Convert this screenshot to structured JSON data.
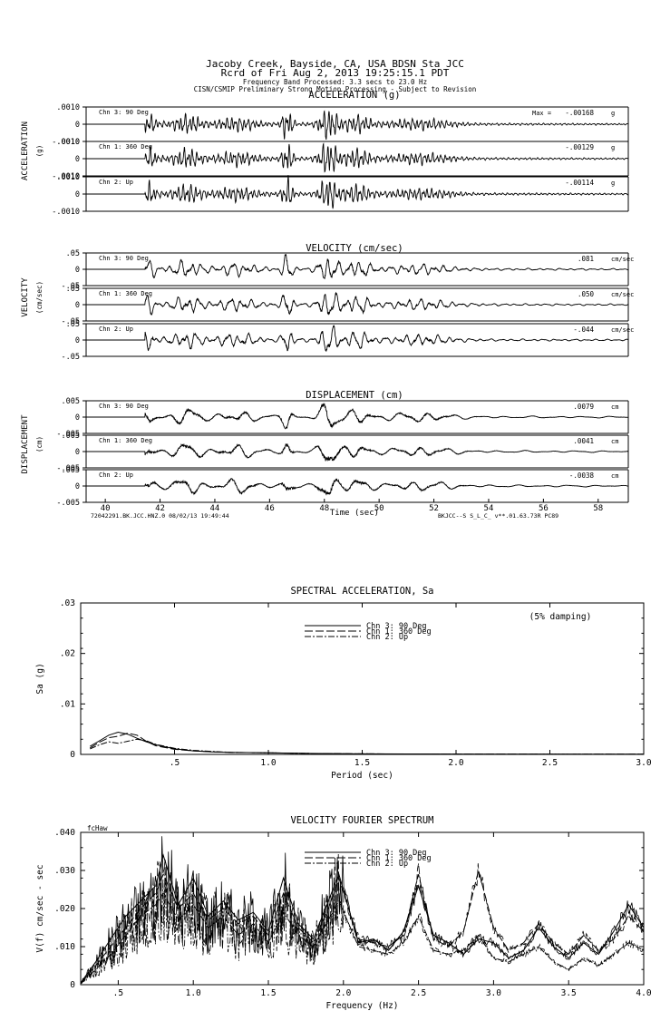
{
  "header": {
    "station": "Jacoby Creek, Bayside, CA, USA    BDSN Sta JCC",
    "record": "Rcrd of Fri Aug  2, 2013 19:25:15.1 PDT",
    "band": "Frequency Band Processed: 3.3 secs to 23.0 Hz",
    "disclaimer": "CISN/CSMIP Preliminary Strong Motion Processing - Subject to Revision"
  },
  "chart_data": [
    {
      "type": "line",
      "title": "ACCELERATION (g)",
      "ylabel": "ACCELERATION",
      "unit_label": "(g)",
      "yticks": [
        ".0010",
        "0",
        "-.0010"
      ],
      "xlim": [
        39.3,
        59.1
      ],
      "series": [
        {
          "name": "Chn 3: 90 Deg",
          "max_label": "Max =",
          "max": "-.00168",
          "unit": "g"
        },
        {
          "name": "Chn 1: 360 Deg",
          "max": "-.00129",
          "unit": "g"
        },
        {
          "name": "Chn 2: Up",
          "max": "-.00114",
          "unit": "g"
        }
      ]
    },
    {
      "type": "line",
      "title": "VELOCITY (cm/sec)",
      "ylabel": "VELOCITY",
      "unit_label": "(cm/sec)",
      "yticks": [
        ".05",
        "0",
        "-.05"
      ],
      "xlim": [
        39.3,
        59.1
      ],
      "series": [
        {
          "name": "Chn 3: 90 Deg",
          "max": ".081",
          "unit": "cm/sec"
        },
        {
          "name": "Chn 1: 360 Deg",
          "max": ".050",
          "unit": "cm/sec"
        },
        {
          "name": "Chn 2: Up",
          "max": "-.044",
          "unit": "cm/sec"
        }
      ]
    },
    {
      "type": "line",
      "title": "DISPLACEMENT (cm)",
      "ylabel": "DISPLACEMENT",
      "unit_label": "(cm)",
      "yticks": [
        ".005",
        "0",
        "-.005"
      ],
      "xlim": [
        39.3,
        59.1
      ],
      "xlabel": "Time (sec)",
      "xticks": [
        "40",
        "42",
        "44",
        "46",
        "48",
        "50",
        "52",
        "54",
        "56",
        "58"
      ],
      "footer_left": "72042291.BK.JCC.HNZ.0 08/02/13 19:49:44",
      "footer_right": "BKJCC--S  S_L_C_  v**.01.63.73R PC89",
      "series": [
        {
          "name": "Chn 3: 90 Deg",
          "max": ".0079",
          "unit": "cm"
        },
        {
          "name": "Chn 1: 360 Deg",
          "max": ".0041",
          "unit": "cm"
        },
        {
          "name": "Chn 2: Up",
          "max": "-.0038",
          "unit": "cm"
        }
      ]
    },
    {
      "type": "line",
      "title": "SPECTRAL ACCELERATION, Sa",
      "ylabel": "Sa (g)",
      "xlabel": "Period (sec)",
      "note": "(5% damping)",
      "xlim": [
        0,
        3.0
      ],
      "ylim": [
        0,
        0.03
      ],
      "xticks": [
        ".5",
        "1.0",
        "1.5",
        "2.0",
        "2.5",
        "3.0"
      ],
      "yticks": [
        ".03",
        ".02",
        ".01",
        "0"
      ],
      "series": [
        {
          "name": "Chn 3: 90 Deg",
          "dash": "",
          "x": [
            0.05,
            0.1,
            0.15,
            0.2,
            0.25,
            0.3,
            0.35,
            0.4,
            0.5,
            0.6,
            0.7,
            0.8,
            1.0,
            1.2,
            1.5,
            2.0,
            2.5,
            3.0
          ],
          "y": [
            0.0016,
            0.0027,
            0.0038,
            0.0044,
            0.004,
            0.0032,
            0.0025,
            0.0019,
            0.0011,
            0.0007,
            0.0005,
            0.0004,
            0.0003,
            0.0002,
            0.0001,
            8e-05,
            5e-05,
            4e-05
          ]
        },
        {
          "name": "Chn 1: 360 Deg",
          "dash": "9,3",
          "x": [
            0.05,
            0.1,
            0.15,
            0.2,
            0.25,
            0.3,
            0.35,
            0.4,
            0.5,
            0.6,
            0.7,
            0.8,
            1.0,
            1.2,
            1.5,
            2.0,
            2.5,
            3.0
          ],
          "y": [
            0.0013,
            0.0024,
            0.0033,
            0.0036,
            0.0042,
            0.0038,
            0.0026,
            0.0017,
            0.001,
            0.0007,
            0.0005,
            0.0004,
            0.0003,
            0.0002,
            0.0001,
            7e-05,
            5e-05,
            3e-05
          ]
        },
        {
          "name": "Chn 2: Up",
          "dash": "7,2,2,2",
          "x": [
            0.05,
            0.1,
            0.15,
            0.2,
            0.25,
            0.3,
            0.35,
            0.4,
            0.5,
            0.6,
            0.7,
            0.8,
            1.0,
            1.2,
            1.5,
            2.0,
            2.5,
            3.0
          ],
          "y": [
            0.0011,
            0.0019,
            0.0025,
            0.0022,
            0.0026,
            0.003,
            0.0027,
            0.002,
            0.0012,
            0.0008,
            0.0006,
            0.0004,
            0.0003,
            0.0002,
            0.0001,
            6e-05,
            4e-05,
            3e-05
          ]
        }
      ]
    },
    {
      "type": "line",
      "title": "VELOCITY FOURIER SPECTRUM",
      "ylabel": "V(f)   cm/sec - sec",
      "xlabel": "Frequency (Hz)",
      "corner_label": "fcHaw",
      "xlim": [
        0.25,
        4.0
      ],
      "ylim": [
        0,
        0.04
      ],
      "xticks": [
        ".5",
        "1.0",
        "1.5",
        "2.0",
        "2.5",
        "3.0",
        "3.5",
        "4.0"
      ],
      "yticks": [
        ".040",
        ".030",
        ".020",
        ".010",
        "0"
      ],
      "series": [
        {
          "name": "Chn 3: 90 Deg",
          "dash": "",
          "x": [
            0.25,
            0.35,
            0.45,
            0.55,
            0.65,
            0.75,
            0.8,
            0.9,
            1.0,
            1.1,
            1.2,
            1.3,
            1.4,
            1.5,
            1.6,
            1.7,
            1.8,
            1.9,
            1.97,
            2.1,
            2.2,
            2.3,
            2.4,
            2.5,
            2.6,
            2.7,
            2.8,
            2.9,
            3.0,
            3.1,
            3.2,
            3.3,
            3.4,
            3.5,
            3.6,
            3.7,
            3.8,
            3.9,
            4.0
          ],
          "y": [
            0.0005,
            0.006,
            0.012,
            0.018,
            0.022,
            0.026,
            0.034,
            0.021,
            0.028,
            0.018,
            0.022,
            0.017,
            0.019,
            0.014,
            0.028,
            0.016,
            0.012,
            0.022,
            0.029,
            0.011,
            0.012,
            0.009,
            0.014,
            0.026,
            0.013,
            0.011,
            0.008,
            0.012,
            0.011,
            0.007,
            0.009,
            0.015,
            0.01,
            0.007,
            0.011,
            0.008,
            0.014,
            0.021,
            0.015
          ]
        },
        {
          "name": "Chn 1: 360 Deg",
          "dash": "9,3",
          "x": [
            0.25,
            0.35,
            0.45,
            0.55,
            0.65,
            0.75,
            0.8,
            0.9,
            1.0,
            1.1,
            1.2,
            1.3,
            1.4,
            1.5,
            1.6,
            1.7,
            1.8,
            1.9,
            1.97,
            2.1,
            2.2,
            2.3,
            2.4,
            2.5,
            2.6,
            2.7,
            2.8,
            2.9,
            3.0,
            3.1,
            3.2,
            3.3,
            3.4,
            3.5,
            3.6,
            3.7,
            3.8,
            3.9,
            4.0
          ],
          "y": [
            0.0004,
            0.005,
            0.01,
            0.015,
            0.02,
            0.024,
            0.029,
            0.02,
            0.024,
            0.017,
            0.02,
            0.016,
            0.018,
            0.013,
            0.024,
            0.015,
            0.011,
            0.02,
            0.028,
            0.012,
            0.011,
            0.01,
            0.013,
            0.029,
            0.012,
            0.01,
            0.014,
            0.03,
            0.015,
            0.009,
            0.011,
            0.016,
            0.011,
            0.008,
            0.013,
            0.009,
            0.012,
            0.018,
            0.014
          ]
        },
        {
          "name": "Chn 2: Up",
          "dash": "7,2,2,2",
          "x": [
            0.25,
            0.35,
            0.45,
            0.55,
            0.65,
            0.75,
            0.8,
            0.9,
            1.0,
            1.1,
            1.2,
            1.3,
            1.4,
            1.5,
            1.6,
            1.7,
            1.8,
            1.9,
            1.97,
            2.1,
            2.2,
            2.3,
            2.4,
            2.5,
            2.6,
            2.7,
            2.8,
            2.9,
            3.0,
            3.1,
            3.2,
            3.3,
            3.4,
            3.5,
            3.6,
            3.7,
            3.8,
            3.9,
            4.0
          ],
          "y": [
            0.0003,
            0.004,
            0.008,
            0.013,
            0.018,
            0.021,
            0.024,
            0.017,
            0.021,
            0.015,
            0.018,
            0.013,
            0.016,
            0.011,
            0.019,
            0.013,
            0.01,
            0.017,
            0.022,
            0.01,
            0.009,
            0.008,
            0.011,
            0.018,
            0.009,
            0.008,
            0.009,
            0.013,
            0.007,
            0.006,
            0.008,
            0.01,
            0.006,
            0.004,
            0.007,
            0.005,
            0.008,
            0.011,
            0.009
          ]
        }
      ]
    }
  ]
}
